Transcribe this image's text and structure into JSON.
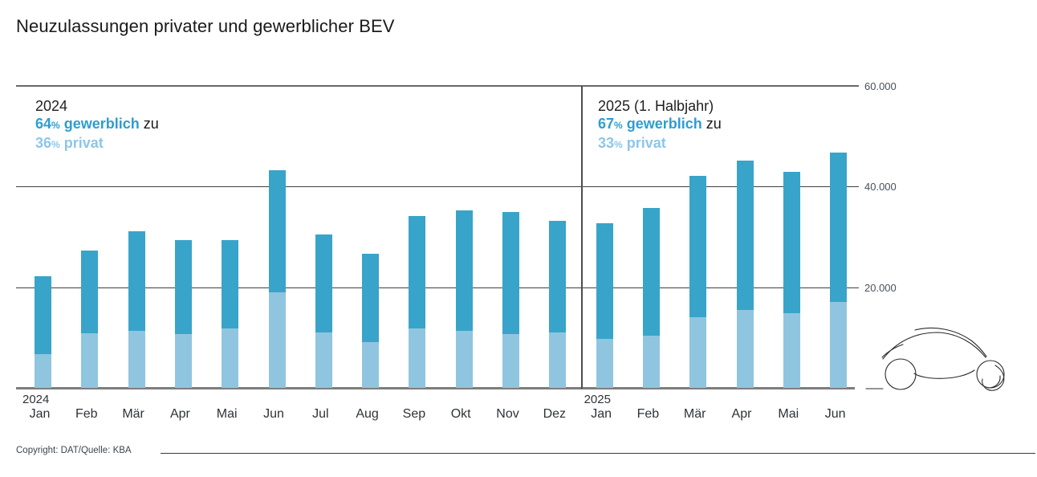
{
  "title": "Neuzulassungen privater und gewerblicher BEV",
  "copyright": "Copyright: DAT/Quelle: KBA",
  "colors": {
    "gewerblich_bar": "#38a4c9",
    "privat_bar": "#90c5e0",
    "gewerblich_text": "#2d9dd3",
    "privat_text": "#8dc6e9",
    "grid_dark": "#404040",
    "grid_border": "#696969"
  },
  "annotations": {
    "left": {
      "year": "2024",
      "pct_gewerblich": "64",
      "pct_privat": "36",
      "percent_sign": "%",
      "gewerblich_label": "gewerblich",
      "privat_label": "privat",
      "connector": "zu"
    },
    "right": {
      "year": "2025 (1. Halbjahr)",
      "pct_gewerblich": "67",
      "pct_privat": "33",
      "percent_sign": "%",
      "gewerblich_label": "gewerblich",
      "privat_label": "privat",
      "connector": "zu"
    }
  },
  "chart_data": {
    "type": "bar",
    "stacked": true,
    "title": "Neuzulassungen privater und gewerblicher BEV",
    "xlabel": "",
    "ylabel": "",
    "ylim": [
      0,
      60000
    ],
    "grid": true,
    "legend_position": "none",
    "yticks": [
      {
        "label": "60.000",
        "value": 60000
      },
      {
        "label": "40.000",
        "value": 40000
      },
      {
        "label": "20.000",
        "value": 20000
      }
    ],
    "series_names": [
      "privat",
      "gewerblich"
    ],
    "groups": [
      {
        "year": "2024",
        "months": [
          "Jan",
          "Feb",
          "Mär",
          "Apr",
          "Mai",
          "Jun",
          "Jul",
          "Aug",
          "Sep",
          "Okt",
          "Nov",
          "Dez"
        ],
        "privat": [
          6700,
          10800,
          11300,
          10700,
          11800,
          19000,
          11000,
          9100,
          11800,
          11300,
          10700,
          11000
        ],
        "gewerblich": [
          15500,
          16400,
          19800,
          18700,
          17600,
          24200,
          19500,
          17600,
          22300,
          23900,
          24200,
          22200
        ],
        "share_gewerblich_pct": 64,
        "share_privat_pct": 36
      },
      {
        "year": "2025",
        "months": [
          "Jan",
          "Feb",
          "Mär",
          "Apr",
          "Mai",
          "Jun"
        ],
        "privat": [
          9700,
          10300,
          14000,
          15400,
          14800,
          17000
        ],
        "gewerblich": [
          23000,
          25400,
          28100,
          29700,
          28100,
          29700
        ],
        "share_gewerblich_pct": 67,
        "share_privat_pct": 33
      }
    ]
  }
}
